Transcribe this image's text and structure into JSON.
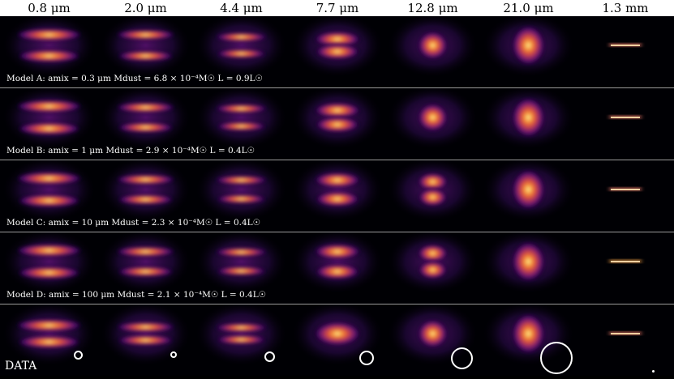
{
  "columns": [
    {
      "label": "0.8 μm"
    },
    {
      "label": "2.0 μm"
    },
    {
      "label": "4.4 μm"
    },
    {
      "label": "7.7 μm"
    },
    {
      "label": "12.8 μm"
    },
    {
      "label": "21.0 μm"
    },
    {
      "label": "1.3 mm"
    }
  ],
  "rows": [
    {
      "label": "Model A: amix = 0.3 μm Mdust = 6.8 × 10⁻⁴M☉ L = 0.9L☉",
      "morph": [
        0.5,
        0.5,
        0.3,
        0.12,
        0,
        0,
        0
      ]
    },
    {
      "label": "Model B: amix = 1 μm Mdust = 2.9 × 10⁻⁴M☉ L = 0.4L☉",
      "morph": [
        0.55,
        0.45,
        0.35,
        0.2,
        0,
        0,
        0
      ]
    },
    {
      "label": "Model C: amix = 10 μm Mdust = 2.3 × 10⁻⁴M☉ L = 0.4L☉",
      "morph": [
        0.55,
        0.45,
        0.4,
        0.4,
        0.25,
        0,
        0
      ]
    },
    {
      "label": "Model D: amix = 100 μm Mdust = 2.1 × 10⁻⁴M☉ L = 0.4L☉",
      "morph": [
        0.55,
        0.45,
        0.4,
        0.45,
        0.3,
        0,
        0
      ]
    },
    {
      "label": "DATA",
      "morph": [
        0.3,
        0.15,
        0.1,
        0,
        0,
        0,
        0
      ]
    }
  ],
  "colors": {
    "colormap": "inferno",
    "separator": "#9a9a9a",
    "beam": "#ffffff"
  }
}
